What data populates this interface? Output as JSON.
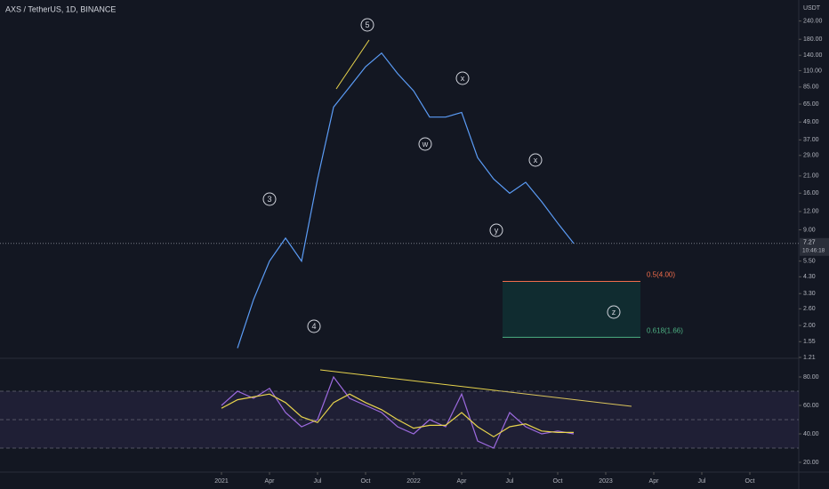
{
  "header": {
    "title": "AXS / TetherUS, 1D, BINANCE",
    "unit": "USDT"
  },
  "chart_data": [
    {
      "type": "line",
      "log_scale": true,
      "x": [
        "2021-02",
        "2021-03",
        "2021-04",
        "2021-05",
        "2021-06",
        "2021-07",
        "2021-08",
        "2021-09",
        "2021-10",
        "2021-11",
        "2021-12",
        "2022-01",
        "2022-02",
        "2022-03",
        "2022-04",
        "2022-05",
        "2022-06",
        "2022-07",
        "2022-08",
        "2022-09",
        "2022-10",
        "2022-11"
      ],
      "series": [
        {
          "color": "#5b9cf6",
          "values": [
            1.4,
            3.0,
            5.5,
            7.9,
            5.5,
            20,
            62,
            85,
            117,
            145,
            105,
            80,
            53,
            53,
            57,
            28,
            20,
            16,
            19,
            14,
            10,
            7.27
          ]
        }
      ],
      "ylim": [
        1.21,
        334
      ],
      "yticks": [
        {
          "value": 240,
          "label": "240.00"
        },
        {
          "value": 180,
          "label": "180.00"
        },
        {
          "value": 140,
          "label": "140.00"
        },
        {
          "value": 110,
          "label": "110.00"
        },
        {
          "value": 85,
          "label": "85.00"
        },
        {
          "value": 65,
          "label": "65.00"
        },
        {
          "value": 49,
          "label": "49.00"
        },
        {
          "value": 37,
          "label": "37.00"
        },
        {
          "value": 29,
          "label": "29.00"
        },
        {
          "value": 21,
          "label": "21.00"
        },
        {
          "value": 16,
          "label": "16.00"
        },
        {
          "value": 12,
          "label": "12.00"
        },
        {
          "value": 9,
          "label": "9.00"
        },
        {
          "value": 5.5,
          "label": "5.50"
        },
        {
          "value": 4.3,
          "label": "4.30"
        },
        {
          "value": 3.3,
          "label": "3.30"
        },
        {
          "value": 2.6,
          "label": "2.60"
        },
        {
          "value": 2,
          "label": "2.00"
        },
        1.55,
        1.21
      ],
      "xticks": [
        {
          "value": "2021-01",
          "label": "2021"
        },
        {
          "value": "2021-04",
          "label": "Apr"
        },
        {
          "value": "2021-07",
          "label": "Jul"
        },
        {
          "value": "2021-10",
          "label": "Oct"
        },
        {
          "value": "2022-01",
          "label": "2022"
        },
        {
          "value": "2022-04",
          "label": "Apr"
        },
        {
          "value": "2022-07",
          "label": "Jul"
        },
        {
          "value": "2022-10",
          "label": "Oct"
        },
        {
          "value": "2023-01",
          "label": "2023"
        },
        {
          "value": "2023-04",
          "label": "Apr"
        },
        {
          "value": "2023-07",
          "label": "Jul"
        },
        {
          "value": "2023-10",
          "label": "Oct"
        }
      ],
      "last_price": {
        "value": 7.27,
        "label": "7.27",
        "countdown": "10:46:18"
      },
      "fib_levels": [
        {
          "value": 4.0,
          "label": "0.5(4.00)",
          "color": "#f06c4b"
        },
        {
          "value": 1.66,
          "label": "0.618(1.66)",
          "color": "#4caf82"
        }
      ],
      "annotations": [
        "5",
        "3",
        "4",
        "w",
        "x",
        "x",
        "y",
        "z"
      ]
    },
    {
      "type": "line",
      "x": [
        "2021-01",
        "2021-02",
        "2021-03",
        "2021-04",
        "2021-05",
        "2021-06",
        "2021-07",
        "2021-08",
        "2021-09",
        "2021-10",
        "2021-11",
        "2021-12",
        "2022-01",
        "2022-02",
        "2022-03",
        "2022-04",
        "2022-05",
        "2022-06",
        "2022-07",
        "2022-08",
        "2022-09",
        "2022-10",
        "2022-11"
      ],
      "series": [
        {
          "color": "#9c6ade",
          "values": [
            60,
            70,
            65,
            72,
            55,
            45,
            50,
            80,
            65,
            60,
            55,
            45,
            40,
            50,
            45,
            68,
            35,
            30,
            55,
            45,
            40,
            42,
            40
          ]
        },
        {
          "color": "#e8d44d",
          "values": [
            58,
            64,
            66,
            68,
            62,
            52,
            48,
            62,
            68,
            62,
            57,
            50,
            44,
            46,
            46,
            55,
            45,
            38,
            45,
            47,
            42,
            41,
            41
          ]
        }
      ],
      "ylim": [
        13.75,
        92.5
      ],
      "yticks": [
        {
          "value": 80,
          "label": "80.00"
        },
        {
          "value": 60,
          "label": "60.00"
        },
        {
          "value": 40,
          "label": "40.00"
        },
        {
          "value": 20,
          "label": "20.00"
        }
      ],
      "bands": [
        70,
        50,
        30
      ]
    }
  ]
}
